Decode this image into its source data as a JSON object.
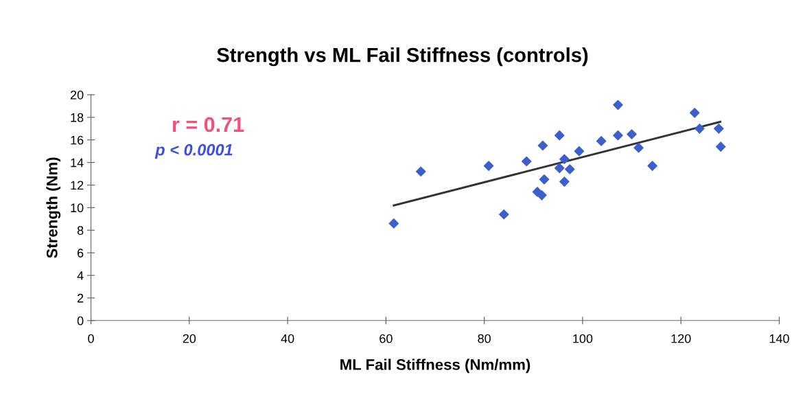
{
  "chart_data": {
    "type": "scatter",
    "title": "Strength vs ML Fail Stiffness (controls)",
    "xlabel": "ML Fail Stiffness (Nm/mm)",
    "ylabel": "Strength (Nm)",
    "annotations": [
      "r = 0.71",
      "p < 0.0001"
    ],
    "series": [
      {
        "color": "#3d5fcc",
        "marker": "diamond",
        "x": [
          61.6,
          67.1,
          80.9,
          84.0,
          88.6,
          90.8,
          91.7,
          91.9,
          92.2,
          95.3,
          95.3,
          96.3,
          96.3,
          97.4,
          99.3,
          103.8,
          107.2,
          107.2,
          110.0,
          111.4,
          114.2,
          122.8,
          123.8,
          127.7,
          128.1
        ],
        "values": [
          8.6,
          13.2,
          13.7,
          9.4,
          14.1,
          11.4,
          11.1,
          15.5,
          12.5,
          16.4,
          13.5,
          14.3,
          12.3,
          13.4,
          15.0,
          15.9,
          19.1,
          16.4,
          16.5,
          15.3,
          13.7,
          18.4,
          17.0,
          17.0,
          15.4
        ]
      },
      {
        "type": "line",
        "color": "#333333",
        "marker": "none",
        "x": [
          61.6,
          128.0
        ],
        "values": [
          10.2,
          17.6
        ]
      }
    ],
    "xlim": [
      0,
      140
    ],
    "xticks": [
      0,
      20,
      40,
      60,
      80,
      100,
      120,
      140
    ],
    "ylim": [
      0,
      20
    ],
    "yticks": [
      0,
      2,
      4,
      6,
      8,
      10,
      12,
      14,
      16,
      18,
      20
    ],
    "grid": false,
    "legend": false
  }
}
